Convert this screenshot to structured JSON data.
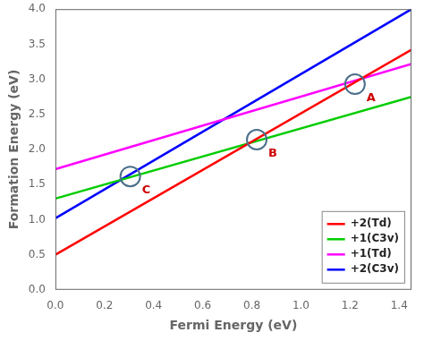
{
  "chart_data": {
    "type": "line",
    "xlabel": "Fermi Energy (eV)",
    "ylabel": "Formation Energy (eV)",
    "x": [
      0.0,
      1.45
    ],
    "series": [
      {
        "name": "+2(Td)",
        "color": "#ff0000",
        "values": [
          0.5,
          3.42
        ]
      },
      {
        "name": "+1(C3v)",
        "color": "#00cc00",
        "values": [
          1.3,
          2.75
        ]
      },
      {
        "name": "+1(Td)",
        "color": "#ff00ff",
        "values": [
          1.72,
          3.22
        ]
      },
      {
        "name": "+2(C3v)",
        "color": "#0000ff",
        "values": [
          1.02,
          4.0
        ]
      }
    ],
    "annotations": [
      {
        "text": "A",
        "x": 1.22,
        "y": 2.93,
        "color": "#cc0000",
        "marker": "circle"
      },
      {
        "text": "B",
        "x": 0.82,
        "y": 2.14,
        "color": "#cc0000",
        "marker": "circle"
      },
      {
        "text": "C",
        "x": 0.305,
        "y": 1.615,
        "color": "#cc0000",
        "marker": "circle"
      }
    ],
    "xlim": [
      0.0,
      1.45
    ],
    "ylim": [
      0.0,
      4.0
    ],
    "xticks": [
      {
        "value": 0.0,
        "label": "0.0"
      },
      0.2,
      0.4,
      0.6,
      0.8,
      {
        "value": 1.0,
        "label": "1.0"
      },
      1.2,
      1.4
    ],
    "yticks": [
      {
        "value": 0.0,
        "label": "0.0"
      },
      0.5,
      {
        "value": 1.0,
        "label": "1.0"
      },
      1.5,
      {
        "value": 2.0,
        "label": "2.0"
      },
      2.5,
      {
        "value": 3.0,
        "label": "3.0"
      },
      3.5,
      {
        "value": 4.0,
        "label": "4.0"
      }
    ],
    "grid": false,
    "legend": "lower right"
  }
}
